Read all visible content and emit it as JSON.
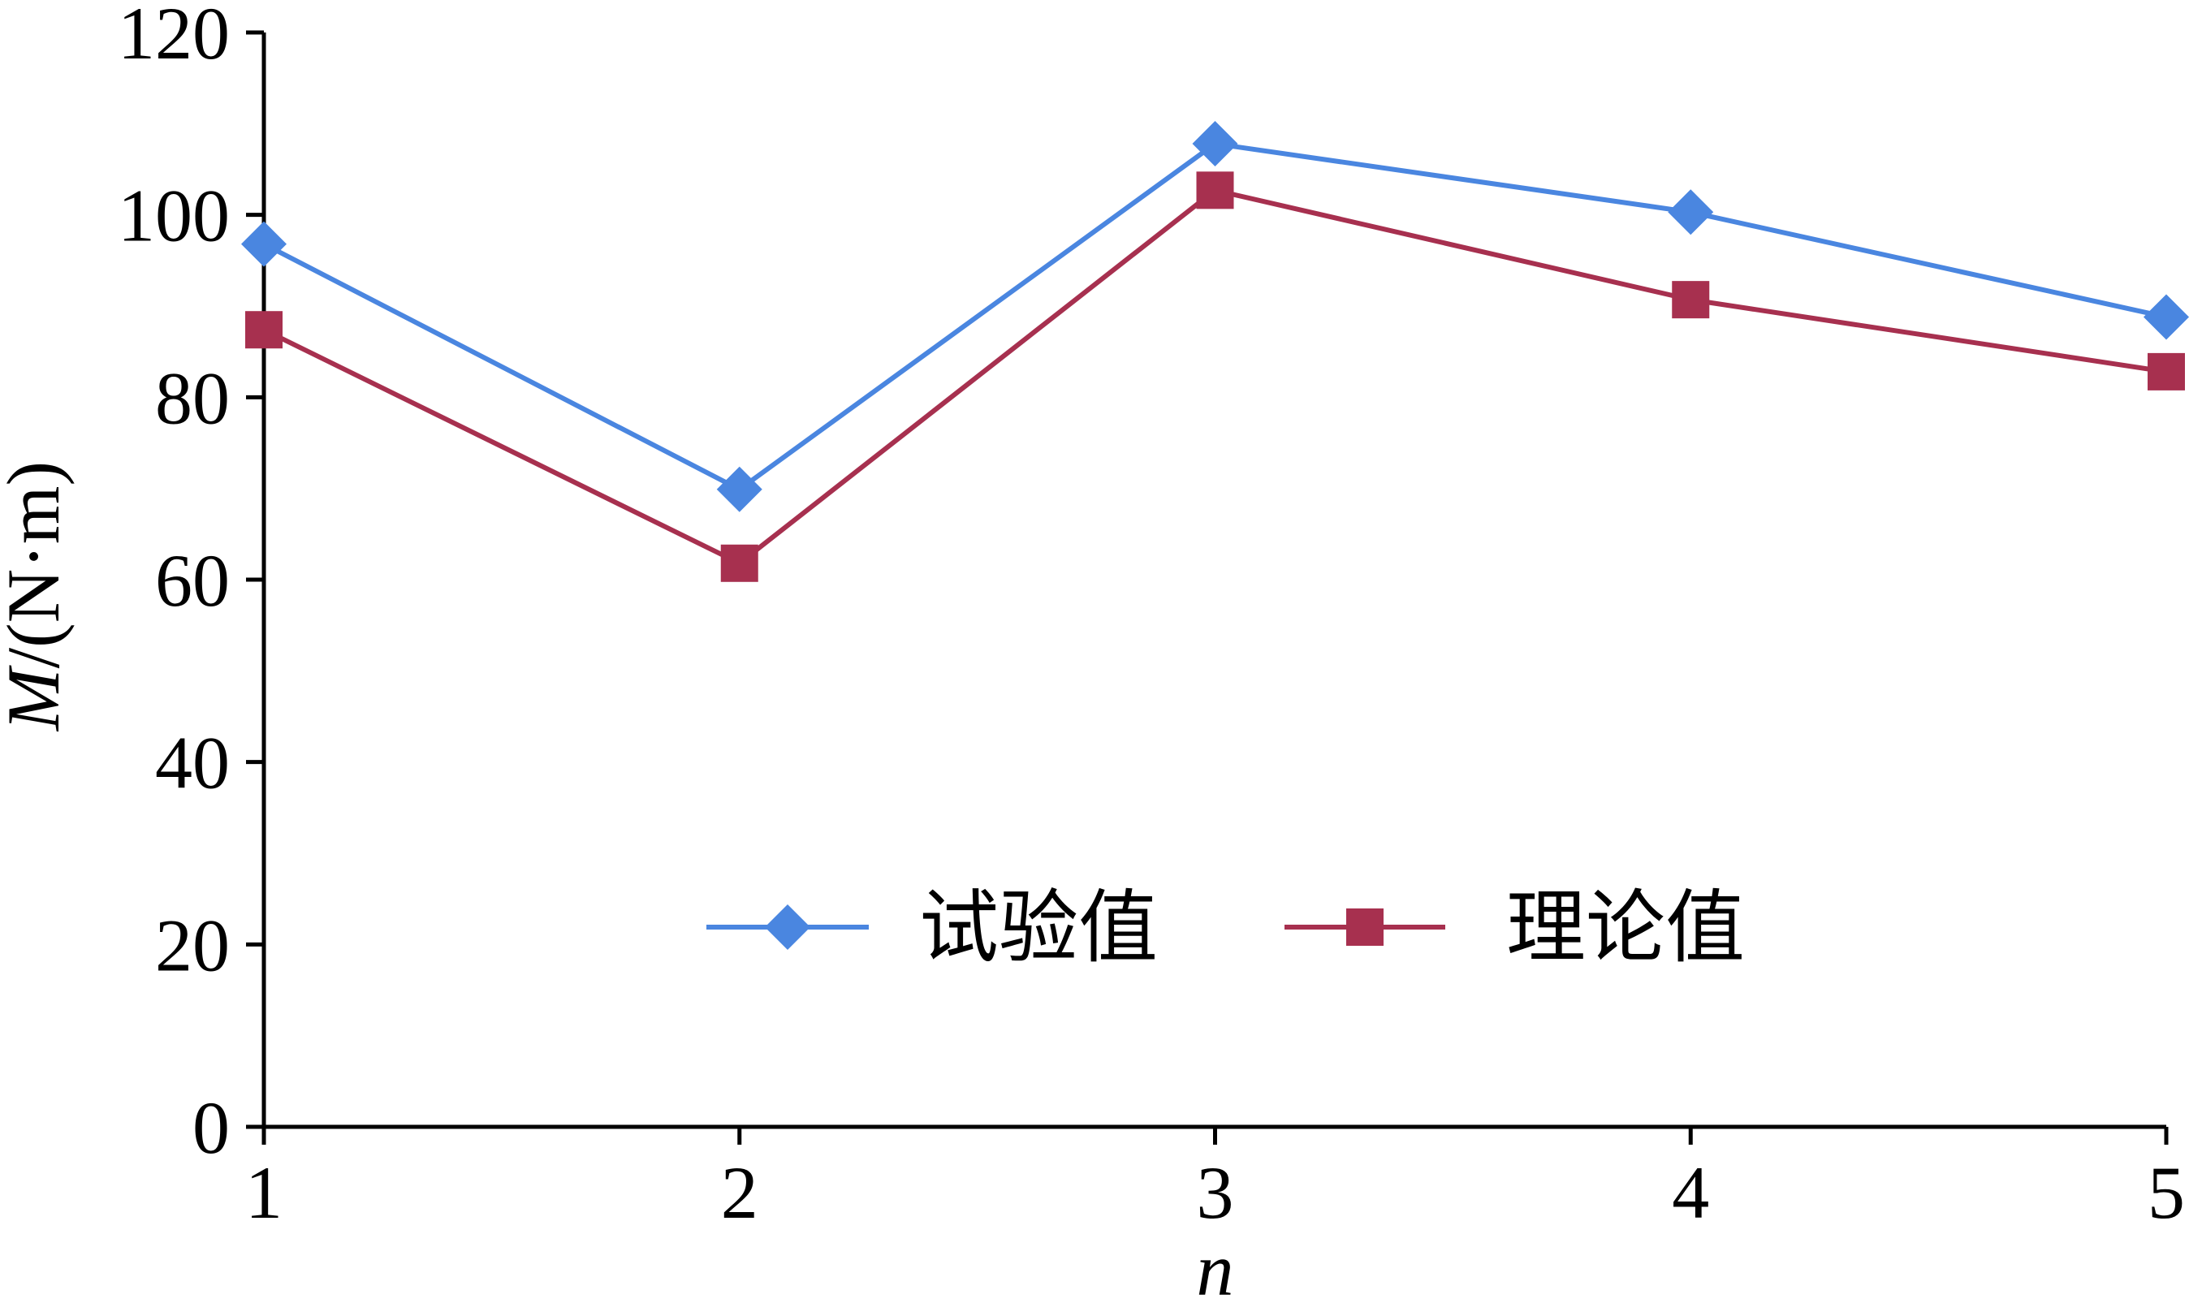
{
  "chart_data": {
    "type": "line",
    "xlabel": "n",
    "ylabel_italic": "M",
    "ylabel_unit": "/(N·m)",
    "x": [
      1,
      2,
      3,
      4,
      5
    ],
    "xlim": [
      1,
      5
    ],
    "ylim": [
      0,
      120
    ],
    "xticks": [
      "1",
      "2",
      "3",
      "4",
      "5"
    ],
    "yticks": [
      "0",
      "20",
      "40",
      "60",
      "80",
      "100",
      "120"
    ],
    "grid": false,
    "legend_position": "center",
    "series": [
      {
        "name": "试验值",
        "values": [
          96.8,
          69.9,
          107.8,
          100.3,
          88.8
        ],
        "color": "#4A86E0",
        "marker": "diamond"
      },
      {
        "name": "理论值",
        "values": [
          87.4,
          61.8,
          102.7,
          90.7,
          82.8
        ],
        "color": "#A7304F",
        "marker": "square"
      }
    ]
  }
}
